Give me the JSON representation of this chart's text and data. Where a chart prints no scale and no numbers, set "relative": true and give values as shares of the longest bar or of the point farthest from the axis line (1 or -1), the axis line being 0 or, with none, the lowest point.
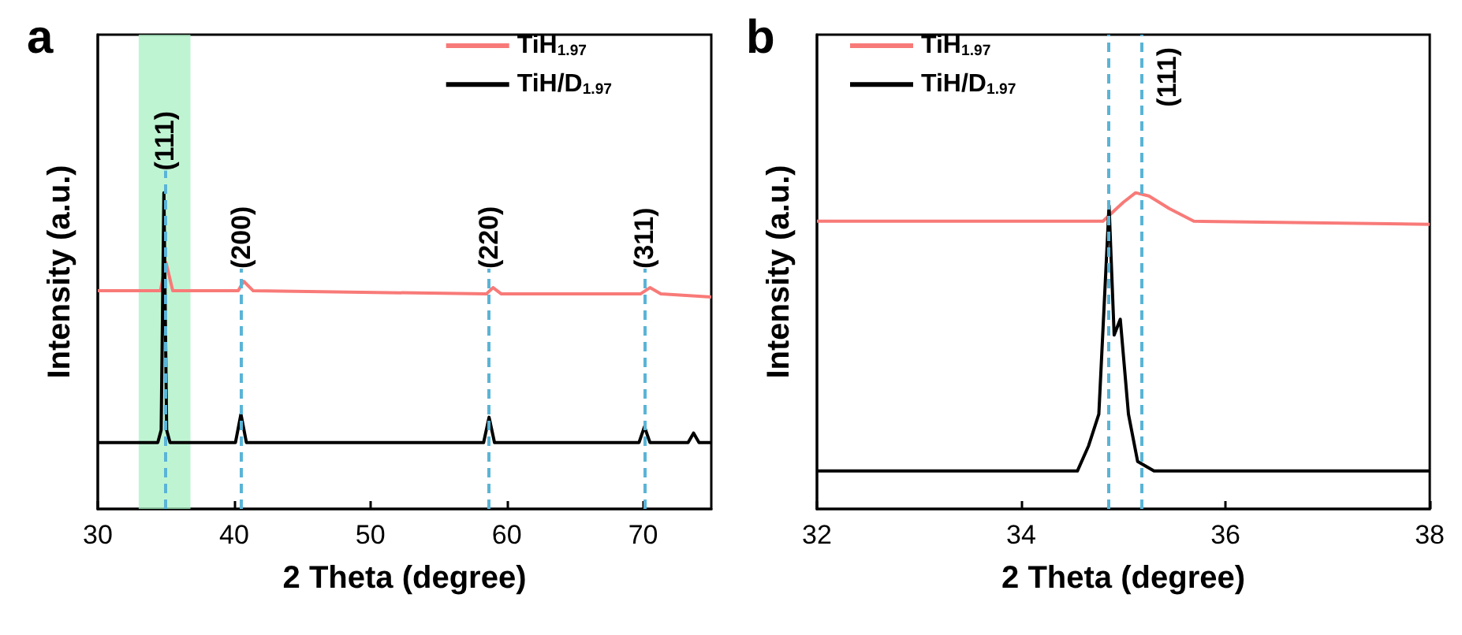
{
  "chart_data": [
    {
      "type": "line",
      "title": "a",
      "xlabel": "2 Theta (degree)",
      "ylabel": "Intensity (a.u.)",
      "relative": true,
      "legend": "top right",
      "xlim": [
        30,
        75
      ],
      "xticks": [
        30,
        40,
        50,
        60,
        70
      ],
      "series": [
        {
          "name": "TiH$_{1.97}$",
          "color": "#f87a78",
          "x": [
            30,
            34.6,
            35.0,
            35.5,
            40.3,
            40.7,
            41.4,
            58.5,
            59.0,
            59.6,
            69.8,
            70.5,
            71.3,
            75
          ],
          "values": [
            0.69,
            0.69,
            0.78,
            0.69,
            0.69,
            0.72,
            0.69,
            0.68,
            0.7,
            0.68,
            0.68,
            0.7,
            0.68,
            0.67
          ]
        },
        {
          "name": "TiH/D$_{1.97}$",
          "color": "#000000",
          "x": [
            30,
            34.4,
            34.65,
            34.85,
            35.05,
            35.3,
            40.1,
            40.5,
            40.9,
            58.3,
            58.7,
            59.1,
            69.7,
            70.1,
            70.5,
            73.3,
            73.7,
            74.1,
            75
          ],
          "values": [
            0.21,
            0.21,
            0.25,
            1.0,
            0.25,
            0.21,
            0.21,
            0.3,
            0.21,
            0.21,
            0.29,
            0.21,
            0.21,
            0.26,
            0.21,
            0.21,
            0.24,
            0.21,
            0.21
          ]
        }
      ],
      "bands": [
        {
          "axis": "x",
          "from": 33,
          "to": 36.8,
          "color": "#aaf0c4"
        }
      ],
      "ref_lines": [
        {
          "axis": "x",
          "value": 34.9,
          "color": "#5ab4d6",
          "line_style": "dashed"
        },
        {
          "axis": "x",
          "value": 40.5,
          "color": "#5ab4d6",
          "line_style": "dashed"
        },
        {
          "axis": "x",
          "value": 58.7,
          "color": "#5ab4d6",
          "line_style": "dashed"
        },
        {
          "axis": "x",
          "value": 70.1,
          "color": "#5ab4d6",
          "line_style": "dashed"
        }
      ],
      "annotations": [
        {
          "text": "(111)",
          "x": 34.9,
          "y": 1.07
        },
        {
          "text": "(200)",
          "x": 40.5,
          "y": 0.76
        },
        {
          "text": "(220)",
          "x": 58.7,
          "y": 0.76
        },
        {
          "text": "(311)",
          "x": 70.1,
          "y": 0.76
        }
      ]
    },
    {
      "type": "line",
      "title": "b",
      "xlabel": "2 Theta (degree)",
      "ylabel": "Intensity (a.u.)",
      "relative": true,
      "legend": "top left",
      "xlim": [
        32,
        38
      ],
      "xticks": [
        32,
        34,
        36,
        38
      ],
      "series": [
        {
          "name": "TiH$_{1.97}$",
          "color": "#f87a78",
          "x": [
            32,
            34.8,
            35.0,
            35.12,
            35.25,
            35.45,
            35.69,
            38
          ],
          "values": [
            0.91,
            0.91,
            0.97,
            1.0,
            0.99,
            0.95,
            0.91,
            0.9
          ]
        },
        {
          "name": "TiH/D$_{1.97}$",
          "color": "#000000",
          "x": [
            32,
            34.55,
            34.66,
            34.76,
            34.86,
            34.91,
            34.97,
            35.05,
            35.14,
            35.3,
            38
          ],
          "values": [
            0.12,
            0.12,
            0.2,
            0.3,
            0.96,
            0.55,
            0.6,
            0.3,
            0.15,
            0.12,
            0.12
          ]
        }
      ],
      "ref_lines": [
        {
          "axis": "x",
          "value": 34.86,
          "color": "#5ab4d6",
          "line_style": "dashed"
        },
        {
          "axis": "x",
          "value": 35.18,
          "color": "#5ab4d6",
          "line_style": "dashed"
        }
      ],
      "annotations": [
        "(111)"
      ]
    }
  ]
}
